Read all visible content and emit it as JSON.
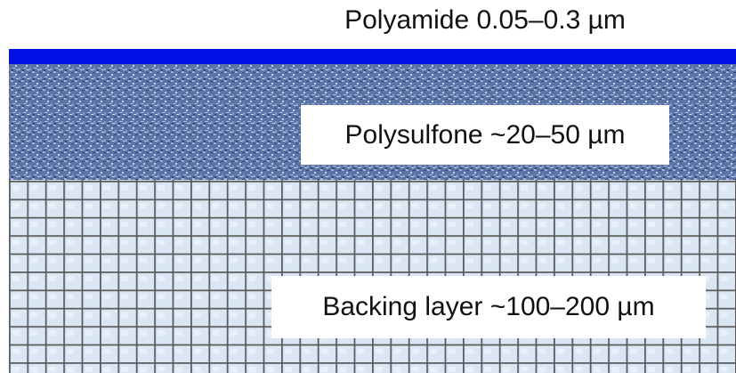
{
  "layers": [
    {
      "label": "Polyamide 0.05–0.3 µm"
    },
    {
      "label": "Polysulfone ~20–50 µm"
    },
    {
      "label": "Backing layer ~100–200 µm"
    }
  ]
}
